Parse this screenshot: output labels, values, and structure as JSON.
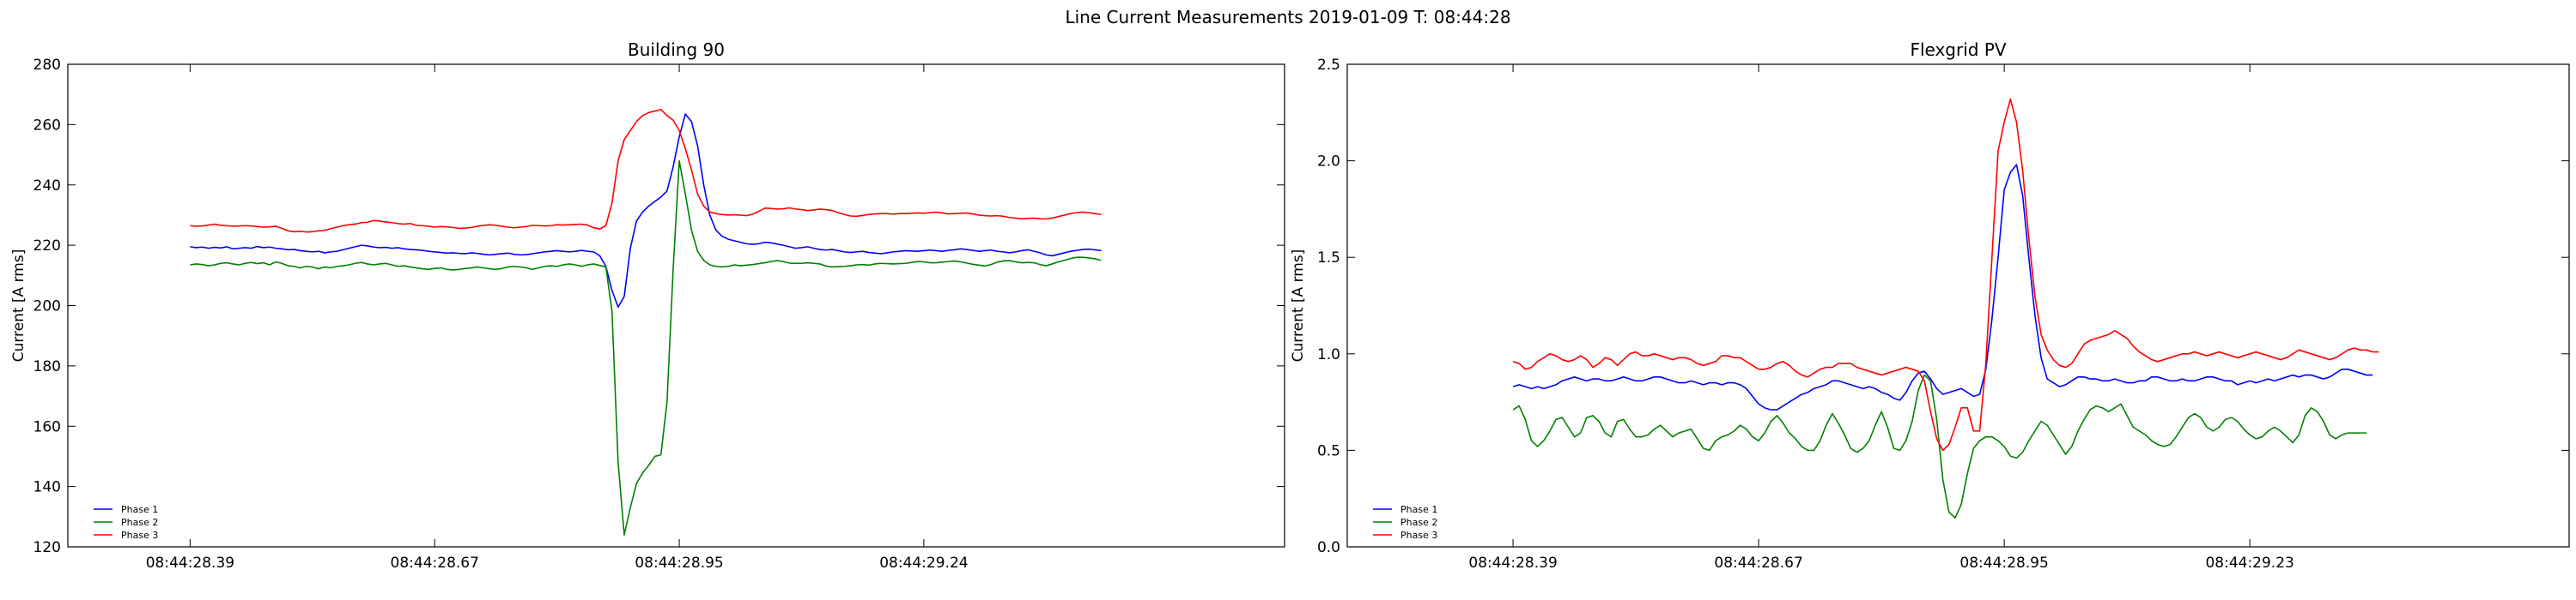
{
  "figure": {
    "title": "Line Current Measurements 2019-01-09 T: 08:44:28"
  },
  "chart_data": [
    {
      "type": "line",
      "title": "Building 90",
      "xlabel": "",
      "ylabel": "Current [A rms]",
      "ylim": [
        120,
        280
      ],
      "yticks": [
        120,
        140,
        160,
        180,
        200,
        220,
        240,
        260,
        280
      ],
      "xlim": [
        -20,
        179
      ],
      "xticks": [
        {
          "x": 0,
          "label": "08:44:28.39"
        },
        {
          "x": 40,
          "label": "08:44:28.67"
        },
        {
          "x": 80,
          "label": "08:44:28.95"
        },
        {
          "x": 120,
          "label": "08:44:29.24"
        }
      ],
      "legend": "lower-left",
      "grid": false,
      "series": [
        {
          "name": "Phase 1",
          "color": "#0000ff",
          "x_start": 0,
          "x_step": 1,
          "values": [
            219.5,
            219.2,
            219.4,
            219.0,
            219.3,
            219.1,
            219.5,
            218.8,
            219.0,
            219.2,
            219.0,
            219.6,
            219.2,
            219.4,
            219.0,
            218.8,
            218.5,
            218.6,
            218.2,
            218.0,
            217.8,
            218.0,
            217.5,
            217.8,
            218.0,
            218.5,
            219.0,
            219.5,
            220.0,
            219.8,
            219.4,
            219.2,
            219.3,
            219.0,
            219.2,
            218.8,
            218.6,
            218.5,
            218.3,
            218.0,
            217.8,
            217.6,
            217.4,
            217.5,
            217.3,
            217.2,
            217.5,
            217.3,
            217.0,
            216.8,
            217.0,
            217.2,
            217.4,
            217.0,
            216.8,
            216.9,
            217.2,
            217.5,
            217.8,
            218.0,
            218.2,
            218.0,
            217.8,
            218.0,
            218.3,
            218.0,
            217.8,
            216.5,
            213.0,
            205.0,
            199.5,
            203.0,
            219.0,
            228.0,
            231.0,
            233.0,
            234.5,
            236.0,
            238.0,
            246.0,
            256.0,
            263.5,
            261.0,
            253.0,
            240.0,
            230.0,
            225.0,
            223.0,
            222.0,
            221.5,
            221.0,
            220.5,
            220.3,
            220.5,
            221.0,
            220.8,
            220.4,
            220.0,
            219.5,
            219.0,
            219.2,
            219.5,
            219.0,
            218.6,
            218.4,
            218.6,
            218.2,
            217.8,
            217.6,
            217.8,
            218.0,
            217.6,
            217.4,
            217.2,
            217.5,
            217.8,
            218.0,
            218.2,
            218.1,
            218.0,
            218.2,
            218.4,
            218.2,
            218.0,
            218.3,
            218.5,
            218.8,
            218.6,
            218.3,
            218.0,
            218.2,
            218.4,
            218.0,
            217.8,
            217.5,
            217.8,
            218.2,
            218.5,
            218.0,
            217.5,
            216.8,
            216.5,
            217.0,
            217.5,
            218.0,
            218.3,
            218.6,
            218.7,
            218.5,
            218.2
          ]
        },
        {
          "name": "Phase 2",
          "color": "#008000",
          "x_start": 0,
          "x_step": 1,
          "values": [
            213.5,
            213.8,
            213.6,
            213.2,
            213.5,
            214.0,
            214.2,
            213.8,
            213.5,
            214.0,
            214.3,
            213.9,
            214.2,
            213.5,
            214.5,
            214.0,
            213.2,
            213.0,
            212.5,
            213.0,
            212.8,
            212.2,
            212.8,
            212.5,
            213.0,
            213.2,
            213.5,
            214.0,
            214.3,
            213.8,
            213.5,
            213.8,
            214.0,
            213.5,
            213.0,
            213.2,
            212.8,
            212.5,
            212.2,
            212.0,
            212.3,
            212.5,
            212.0,
            211.8,
            212.0,
            212.3,
            212.5,
            212.8,
            212.5,
            212.2,
            212.0,
            212.3,
            212.8,
            213.0,
            212.8,
            212.5,
            212.0,
            212.5,
            213.0,
            213.2,
            213.0,
            213.5,
            213.8,
            213.5,
            213.0,
            213.5,
            213.8,
            213.3,
            212.8,
            198.0,
            148.0,
            124.0,
            133.0,
            141.0,
            144.5,
            147.0,
            150.0,
            150.5,
            168.0,
            212.0,
            248.0,
            237.0,
            225.0,
            218.0,
            215.0,
            213.5,
            213.0,
            212.8,
            213.0,
            213.5,
            213.2,
            213.4,
            213.6,
            213.9,
            214.2,
            214.6,
            214.9,
            214.6,
            214.1,
            214.0,
            214.0,
            214.2,
            214.0,
            213.8,
            213.1,
            212.8,
            212.9,
            213.0,
            213.2,
            213.5,
            213.6,
            213.4,
            213.8,
            214.0,
            213.9,
            213.8,
            213.9,
            214.0,
            214.3,
            214.6,
            214.5,
            214.2,
            214.2,
            214.4,
            214.6,
            214.8,
            214.5,
            214.1,
            213.7,
            213.4,
            213.1,
            213.6,
            214.4,
            214.8,
            214.9,
            214.5,
            214.2,
            214.3,
            214.2,
            213.6,
            213.2,
            213.8,
            214.5,
            215.0,
            215.6,
            216.0,
            216.0,
            215.8,
            215.5,
            215.0
          ]
        },
        {
          "name": "Phase 3",
          "color": "#ff0000",
          "x_start": 0,
          "x_step": 1,
          "values": [
            226.5,
            226.3,
            226.4,
            226.7,
            227.0,
            226.6,
            226.5,
            226.3,
            226.4,
            226.5,
            226.4,
            226.2,
            226.0,
            226.1,
            226.3,
            225.6,
            224.8,
            224.5,
            224.6,
            224.4,
            224.5,
            224.8,
            224.9,
            225.5,
            226.0,
            226.5,
            226.8,
            227.0,
            227.5,
            227.6,
            228.2,
            228.0,
            227.7,
            227.5,
            227.2,
            227.0,
            227.2,
            226.6,
            226.5,
            226.3,
            226.0,
            226.2,
            226.1,
            225.9,
            225.6,
            225.7,
            225.9,
            226.3,
            226.6,
            226.8,
            226.6,
            226.3,
            226.0,
            225.8,
            226.0,
            226.2,
            226.6,
            226.5,
            226.4,
            226.5,
            226.8,
            226.7,
            226.8,
            226.9,
            227.0,
            226.7,
            225.8,
            225.4,
            226.5,
            234.0,
            248.0,
            255.0,
            258.0,
            261.0,
            263.0,
            264.0,
            264.5,
            265.0,
            263.0,
            261.5,
            258.0,
            252.0,
            245.0,
            237.0,
            233.0,
            231.0,
            230.5,
            230.2,
            230.0,
            230.1,
            230.0,
            229.8,
            230.3,
            231.2,
            232.3,
            232.2,
            232.0,
            232.1,
            232.4,
            232.0,
            231.8,
            231.5,
            231.7,
            232.0,
            231.8,
            231.5,
            230.8,
            230.2,
            229.7,
            229.6,
            229.9,
            230.2,
            230.4,
            230.5,
            230.5,
            230.3,
            230.5,
            230.5,
            230.6,
            230.7,
            230.6,
            230.8,
            231.0,
            230.7,
            230.4,
            230.5,
            230.6,
            230.7,
            230.4,
            230.0,
            229.8,
            229.7,
            229.8,
            229.6,
            229.2,
            229.0,
            228.8,
            228.9,
            229.0,
            228.8,
            228.7,
            229.0,
            229.5,
            230.0,
            230.5,
            230.8,
            231.0,
            230.8,
            230.5,
            230.2
          ]
        }
      ]
    },
    {
      "type": "line",
      "title": "Flexgrid PV",
      "xlabel": "",
      "ylabel": "Current [A rms]",
      "ylim": [
        0.0,
        2.5
      ],
      "yticks": [
        0.0,
        0.5,
        1.0,
        1.5,
        2.0,
        2.5
      ],
      "ytick_labels": [
        "0.0",
        "0.5",
        "1.0",
        "1.5",
        "2.0",
        "2.5"
      ],
      "xlim": [
        -27,
        172
      ],
      "xticks": [
        {
          "x": 0,
          "label": "08:44:28.39"
        },
        {
          "x": 40,
          "label": "08:44:28.67"
        },
        {
          "x": 80,
          "label": "08:44:28.95"
        },
        {
          "x": 120,
          "label": "08:44:29.23"
        }
      ],
      "legend": "lower-left",
      "grid": false,
      "series": [
        {
          "name": "Phase 1",
          "color": "#0000ff",
          "x_start": 0,
          "x_step": 1,
          "values": [
            0.83,
            0.84,
            0.83,
            0.82,
            0.83,
            0.82,
            0.83,
            0.84,
            0.86,
            0.87,
            0.88,
            0.87,
            0.86,
            0.87,
            0.87,
            0.86,
            0.86,
            0.87,
            0.88,
            0.87,
            0.86,
            0.86,
            0.87,
            0.88,
            0.88,
            0.87,
            0.86,
            0.85,
            0.85,
            0.86,
            0.85,
            0.84,
            0.85,
            0.85,
            0.84,
            0.85,
            0.85,
            0.84,
            0.82,
            0.78,
            0.74,
            0.72,
            0.71,
            0.71,
            0.73,
            0.75,
            0.77,
            0.79,
            0.8,
            0.82,
            0.83,
            0.84,
            0.86,
            0.86,
            0.85,
            0.84,
            0.83,
            0.82,
            0.83,
            0.82,
            0.8,
            0.79,
            0.77,
            0.76,
            0.8,
            0.86,
            0.9,
            0.91,
            0.87,
            0.82,
            0.79,
            0.8,
            0.81,
            0.82,
            0.8,
            0.78,
            0.79,
            0.92,
            1.18,
            1.5,
            1.85,
            1.94,
            1.98,
            1.82,
            1.5,
            1.2,
            0.98,
            0.87,
            0.85,
            0.83,
            0.84,
            0.86,
            0.88,
            0.88,
            0.87,
            0.87,
            0.86,
            0.86,
            0.87,
            0.86,
            0.85,
            0.85,
            0.86,
            0.86,
            0.88,
            0.88,
            0.87,
            0.86,
            0.86,
            0.87,
            0.86,
            0.86,
            0.87,
            0.88,
            0.88,
            0.87,
            0.86,
            0.86,
            0.84,
            0.85,
            0.86,
            0.85,
            0.86,
            0.87,
            0.86,
            0.87,
            0.88,
            0.89,
            0.88,
            0.89,
            0.89,
            0.88,
            0.87,
            0.88,
            0.9,
            0.92,
            0.92,
            0.91,
            0.9,
            0.89,
            0.89
          ]
        },
        {
          "name": "Phase 2",
          "color": "#008000",
          "x_start": 0,
          "x_step": 1,
          "values": [
            0.71,
            0.73,
            0.66,
            0.55,
            0.52,
            0.55,
            0.6,
            0.66,
            0.67,
            0.62,
            0.57,
            0.59,
            0.67,
            0.68,
            0.65,
            0.59,
            0.57,
            0.65,
            0.66,
            0.61,
            0.57,
            0.57,
            0.58,
            0.61,
            0.63,
            0.6,
            0.57,
            0.59,
            0.6,
            0.61,
            0.56,
            0.51,
            0.5,
            0.55,
            0.57,
            0.58,
            0.6,
            0.63,
            0.61,
            0.57,
            0.55,
            0.59,
            0.65,
            0.68,
            0.64,
            0.59,
            0.56,
            0.52,
            0.5,
            0.5,
            0.55,
            0.63,
            0.69,
            0.64,
            0.58,
            0.51,
            0.49,
            0.51,
            0.55,
            0.63,
            0.7,
            0.62,
            0.51,
            0.5,
            0.55,
            0.65,
            0.81,
            0.89,
            0.86,
            0.66,
            0.35,
            0.18,
            0.15,
            0.22,
            0.38,
            0.51,
            0.55,
            0.57,
            0.57,
            0.55,
            0.52,
            0.47,
            0.46,
            0.49,
            0.55,
            0.6,
            0.65,
            0.63,
            0.58,
            0.53,
            0.48,
            0.52,
            0.6,
            0.66,
            0.71,
            0.73,
            0.72,
            0.7,
            0.72,
            0.74,
            0.68,
            0.62,
            0.6,
            0.58,
            0.55,
            0.53,
            0.52,
            0.53,
            0.57,
            0.62,
            0.67,
            0.69,
            0.67,
            0.62,
            0.6,
            0.62,
            0.66,
            0.67,
            0.65,
            0.61,
            0.58,
            0.56,
            0.57,
            0.6,
            0.62,
            0.6,
            0.57,
            0.54,
            0.58,
            0.68,
            0.72,
            0.7,
            0.65,
            0.58,
            0.56,
            0.58,
            0.59,
            0.59,
            0.59,
            0.59
          ]
        },
        {
          "name": "Phase 3",
          "color": "#ff0000",
          "x_start": 0,
          "x_step": 1,
          "values": [
            0.96,
            0.95,
            0.92,
            0.93,
            0.96,
            0.98,
            1.0,
            0.99,
            0.97,
            0.96,
            0.97,
            0.99,
            0.97,
            0.93,
            0.95,
            0.98,
            0.97,
            0.94,
            0.97,
            1.0,
            1.01,
            0.99,
            0.99,
            1.0,
            0.99,
            0.98,
            0.97,
            0.98,
            0.98,
            0.97,
            0.95,
            0.94,
            0.95,
            0.96,
            0.99,
            0.99,
            0.98,
            0.98,
            0.96,
            0.94,
            0.92,
            0.92,
            0.93,
            0.95,
            0.96,
            0.94,
            0.91,
            0.89,
            0.88,
            0.9,
            0.92,
            0.93,
            0.93,
            0.95,
            0.95,
            0.95,
            0.93,
            0.92,
            0.91,
            0.9,
            0.89,
            0.9,
            0.91,
            0.92,
            0.93,
            0.92,
            0.91,
            0.86,
            0.7,
            0.56,
            0.5,
            0.53,
            0.62,
            0.72,
            0.72,
            0.6,
            0.6,
            0.95,
            1.5,
            2.05,
            2.2,
            2.32,
            2.2,
            1.95,
            1.6,
            1.3,
            1.1,
            1.02,
            0.97,
            0.94,
            0.93,
            0.95,
            1.0,
            1.05,
            1.07,
            1.08,
            1.09,
            1.1,
            1.12,
            1.1,
            1.08,
            1.04,
            1.01,
            0.99,
            0.97,
            0.96,
            0.97,
            0.98,
            0.99,
            1.0,
            1.0,
            1.01,
            1.0,
            0.99,
            1.0,
            1.01,
            1.0,
            0.99,
            0.98,
            0.99,
            1.0,
            1.01,
            1.0,
            0.99,
            0.98,
            0.97,
            0.98,
            1.0,
            1.02,
            1.01,
            1.0,
            0.99,
            0.98,
            0.97,
            0.98,
            1.0,
            1.02,
            1.03,
            1.02,
            1.02,
            1.01,
            1.01
          ]
        }
      ]
    }
  ]
}
